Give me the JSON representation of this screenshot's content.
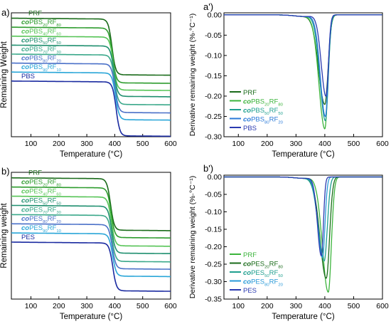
{
  "chart_data": [
    {
      "panel": "a)",
      "type": "line",
      "title": "",
      "xlabel": "Temperature (°C)",
      "ylabel": "Remaining Weight",
      "xlim": [
        30,
        600
      ],
      "xticks": [
        100,
        200,
        300,
        400,
        500,
        600
      ],
      "y_ticks_shown": false,
      "legend": "inline labels above each curve",
      "series": [
        {
          "name": "PRF",
          "plateau": 100,
          "residue": 38,
          "onset_c": 390,
          "color": "#1a6b1a",
          "label_color": "#1a6b1a"
        },
        {
          "name": "coPBS20RF80",
          "label_parts": [
            "co",
            "PBS",
            "20",
            "RF",
            "80"
          ],
          "plateau": 90,
          "residue": 29,
          "onset_c": 392,
          "color": "#2e9c2e",
          "label_color": "#2e9c2e"
        },
        {
          "name": "coPBS40RF60",
          "label_parts": [
            "co",
            "PBS",
            "40",
            "RF",
            "60"
          ],
          "plateau": 80,
          "residue": 21,
          "onset_c": 395,
          "color": "#56c456",
          "label_color": "#56c456"
        },
        {
          "name": "coPBS50RF50",
          "label_parts": [
            "co",
            "PBS",
            "50",
            "RF",
            "50"
          ],
          "plateau": 70,
          "residue": 14,
          "onset_c": 397,
          "color": "#1f8f6f",
          "label_color": "#1f8f6f"
        },
        {
          "name": "coPBS70RF30",
          "label_parts": [
            "co",
            "PBS",
            "70",
            "RF",
            "30"
          ],
          "plateau": 60,
          "residue": 5,
          "onset_c": 399,
          "color": "#3aa88a",
          "label_color": "#3aa88a"
        },
        {
          "name": "coPBS80RF20",
          "label_parts": [
            "co",
            "PBS",
            "80",
            "RF",
            "20"
          ],
          "plateau": 50,
          "residue": -4,
          "onset_c": 401,
          "color": "#4a70c8",
          "label_color": "#4a70c8"
        },
        {
          "name": "coPBS90RF10",
          "label_parts": [
            "co",
            "PBS",
            "90",
            "RF",
            "10"
          ],
          "plateau": 40,
          "residue": -12,
          "onset_c": 403,
          "color": "#2aa6d8",
          "label_color": "#2aa6d8"
        },
        {
          "name": "PBS",
          "plateau": 30,
          "residue": -30,
          "onset_c": 405,
          "color": "#1a2aa0",
          "label_color": "#1a2aa0"
        }
      ]
    },
    {
      "panel": "a')",
      "type": "line",
      "title": "",
      "xlabel": "Temperature (°C)",
      "ylabel": "Derivative remaining weight (%·°C⁻¹)",
      "xlim": [
        50,
        600
      ],
      "ylim": [
        -0.3,
        0.0
      ],
      "xticks": [
        100,
        200,
        300,
        400,
        500,
        600
      ],
      "yticks": [
        0.0,
        -0.05,
        -0.1,
        -0.15,
        -0.2,
        -0.25,
        -0.3
      ],
      "ytick_labels": [
        "0.00",
        "-0.05",
        "-0.10",
        "-0.15",
        "-0.20",
        "-0.25",
        "-0.30"
      ],
      "legend": "bottom-left",
      "series": [
        {
          "name": "PRF",
          "peak_x": 400,
          "peak_y": -0.22,
          "width_c": 16,
          "color": "#1a6b1a"
        },
        {
          "name": "coPBS20RF80",
          "label_parts": [
            "co",
            "PBS",
            "20",
            "RF",
            "80"
          ],
          "peak_x": 400,
          "peak_y": -0.28,
          "width_c": 15,
          "color": "#3cb43c"
        },
        {
          "name": "coPBS50RF50",
          "label_parts": [
            "co",
            "PBS",
            "50",
            "RF",
            "50"
          ],
          "peak_x": 402,
          "peak_y": -0.26,
          "width_c": 14,
          "color": "#1f9f8f"
        },
        {
          "name": "coPBS80RF20",
          "label_parts": [
            "co",
            "PBS",
            "80",
            "RF",
            "20"
          ],
          "peak_x": 402,
          "peak_y": -0.25,
          "width_c": 13,
          "color": "#2a7ad8"
        },
        {
          "name": "PBS",
          "peak_x": 404,
          "peak_y": -0.2,
          "width_c": 12,
          "color": "#2a3ab0"
        }
      ]
    },
    {
      "panel": "b)",
      "type": "line",
      "title": "",
      "xlabel": "Temperature (°C)",
      "ylabel": "Remaining weight",
      "xlim": [
        30,
        600
      ],
      "xticks": [
        100,
        200,
        300,
        400,
        500,
        600
      ],
      "y_ticks_shown": false,
      "legend": "inline labels above each curve",
      "series": [
        {
          "name": "PRF",
          "plateau": 100,
          "residue": 44,
          "onset_c": 385,
          "color": "#1a6b1a",
          "label_color": "#1a6b1a"
        },
        {
          "name": "coPES20RF80",
          "label_parts": [
            "co",
            "PES",
            "20",
            "RF",
            "80"
          ],
          "plateau": 90,
          "residue": 36,
          "onset_c": 387,
          "color": "#2e9c2e",
          "label_color": "#2e9c2e"
        },
        {
          "name": "coPES40RF60",
          "label_parts": [
            "co",
            "PES",
            "40",
            "RF",
            "60"
          ],
          "plateau": 80,
          "residue": 27,
          "onset_c": 388,
          "color": "#56c456",
          "label_color": "#56c456"
        },
        {
          "name": "coPES50RF50",
          "label_parts": [
            "co",
            "PES",
            "50",
            "RF",
            "50"
          ],
          "plateau": 70,
          "residue": 19,
          "onset_c": 389,
          "color": "#1f8f6f",
          "label_color": "#1f8f6f"
        },
        {
          "name": "coPES70RF30",
          "label_parts": [
            "co",
            "PES",
            "70",
            "RF",
            "30"
          ],
          "plateau": 60,
          "residue": 10,
          "onset_c": 390,
          "color": "#3aa88a",
          "label_color": "#3aa88a"
        },
        {
          "name": "coPES80RF20",
          "label_parts": [
            "co",
            "PES",
            "80",
            "RF",
            "20"
          ],
          "plateau": 50,
          "residue": 2,
          "onset_c": 391,
          "color": "#4a70c8",
          "label_color": "#4a70c8"
        },
        {
          "name": "coPES90RF10",
          "label_parts": [
            "co",
            "PES",
            "90",
            "RF",
            "10"
          ],
          "plateau": 40,
          "residue": -6,
          "onset_c": 392,
          "color": "#2aa6d8",
          "label_color": "#2aa6d8"
        },
        {
          "name": "PES",
          "plateau": 30,
          "residue": -22,
          "onset_c": 393,
          "color": "#1a2aa0",
          "label_color": "#1a2aa0"
        }
      ]
    },
    {
      "panel": "b')",
      "type": "line",
      "title": "",
      "xlabel": "Temperature (°C)",
      "ylabel": "Derivative remaining weight (%·°C⁻¹)",
      "xlim": [
        50,
        600
      ],
      "ylim": [
        -0.35,
        0.0
      ],
      "xticks": [
        100,
        200,
        300,
        400,
        500,
        600
      ],
      "yticks": [
        0.0,
        -0.05,
        -0.1,
        -0.15,
        -0.2,
        -0.25,
        -0.3,
        -0.35
      ],
      "ytick_labels": [
        "0.00",
        "-0.05",
        "-0.10",
        "-0.15",
        "-0.20",
        "-0.25",
        "-0.30",
        "-0.35"
      ],
      "legend": "bottom-left",
      "series": [
        {
          "name": "PRF",
          "peak_x": 412,
          "peak_y": -0.33,
          "width_c": 15,
          "color": "#3cb43c"
        },
        {
          "name": "coPES20RF80",
          "label_parts": [
            "co",
            "PES",
            "20",
            "RF",
            "80"
          ],
          "peak_x": 405,
          "peak_y": -0.29,
          "width_c": 16,
          "color": "#1a6b1a"
        },
        {
          "name": "coPES50RF50",
          "label_parts": [
            "co",
            "PES",
            "50",
            "RF",
            "50"
          ],
          "peak_x": 398,
          "peak_y": -0.24,
          "width_c": 15,
          "color": "#1f9f8f"
        },
        {
          "name": "coPES80RF20",
          "label_parts": [
            "co",
            "PES",
            "80",
            "RF",
            "20"
          ],
          "peak_x": 392,
          "peak_y": -0.23,
          "width_c": 12,
          "color": "#2a9ad8"
        },
        {
          "name": "PES",
          "peak_x": 388,
          "peak_y": -0.225,
          "width_c": 10,
          "color": "#2a3ab0"
        }
      ]
    }
  ]
}
